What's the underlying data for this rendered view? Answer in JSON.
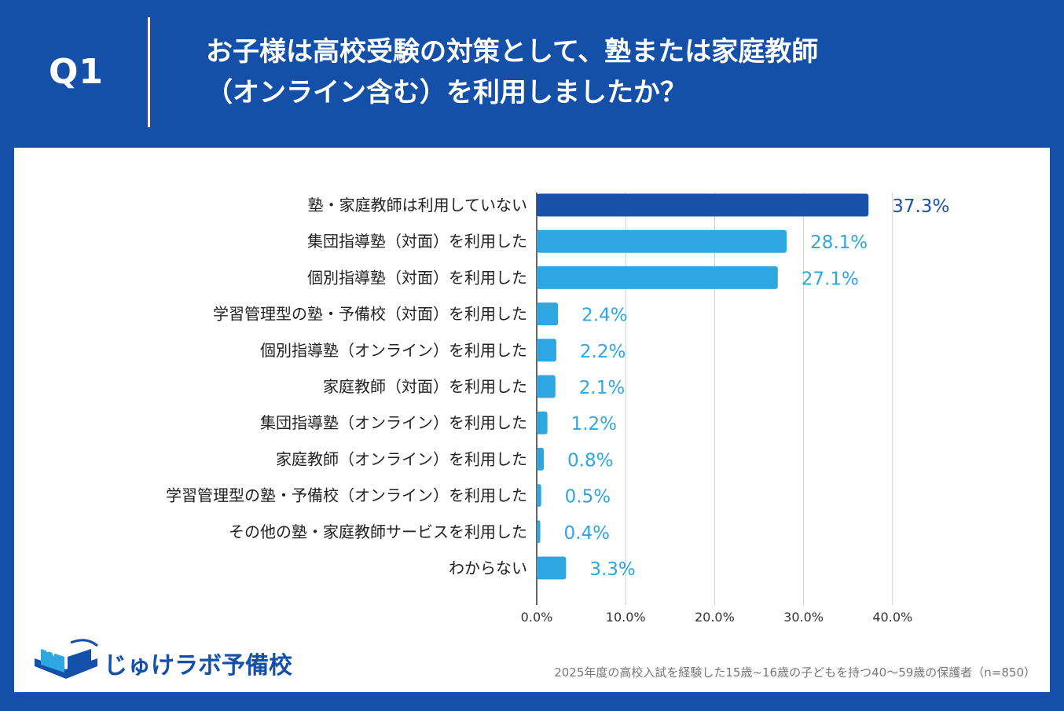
{
  "header": {
    "q_label": "Q1",
    "title_line1": "お子様は高校受験の対策として、塾または家庭教師",
    "title_line2": "（オンライン含む）を利用しましたか？"
  },
  "colors": {
    "background": "#1550a8",
    "highlight_bar": "#1a52a8",
    "bar": "#2ea6e0",
    "highlight_label": "#1a52a8",
    "label": "#2ea6e0"
  },
  "chart_data": {
    "type": "bar",
    "orientation": "horizontal",
    "categories": [
      "塾・家庭教師は利用していない",
      "集団指導塾（対面）を利用した",
      "個別指導塾（対面）を利用した",
      "学習管理型の塾・予備校（対面）を利用した",
      "個別指導塾（オンライン）を利用した",
      "家庭教師（対面）を利用した",
      "集団指導塾（オンライン）を利用した",
      "家庭教師（オンライン）を利用した",
      "学習管理型の塾・予備校（オンライン）を利用した",
      "その他の塾・家庭教師サービスを利用した",
      "わからない"
    ],
    "values": [
      37.3,
      28.1,
      27.1,
      2.4,
      2.2,
      2.1,
      1.2,
      0.8,
      0.5,
      0.4,
      3.3
    ],
    "value_labels": [
      "37.3%",
      "28.1%",
      "27.1%",
      "2.4%",
      "2.2%",
      "2.1%",
      "1.2%",
      "0.8%",
      "0.5%",
      "0.4%",
      "3.3%"
    ],
    "highlight_index": 0,
    "xlim": [
      0,
      40
    ],
    "x_ticks": [
      0,
      10,
      20,
      30,
      40
    ],
    "x_tick_labels": [
      "0.0%",
      "10.0%",
      "20.0%",
      "30.0%",
      "40.0%"
    ],
    "grid": "vertical"
  },
  "logo": {
    "text": "じゅけラボ予備校"
  },
  "footnote": "2025年度の高校入試を経験した15歳~16歳の子どもを持つ40～59歳の保護者（n=850）"
}
